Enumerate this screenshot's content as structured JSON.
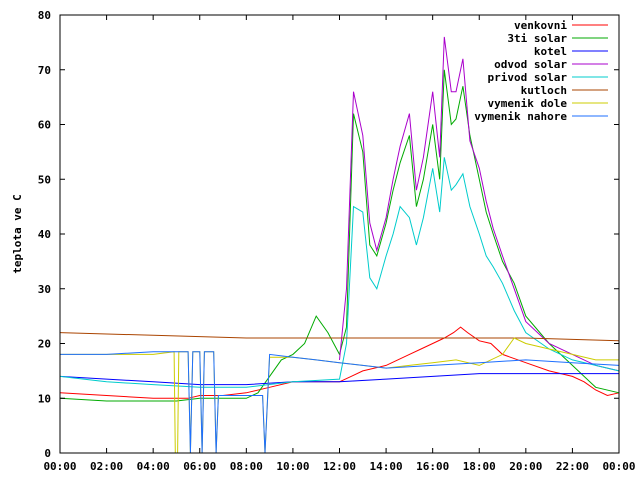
{
  "chart_data": {
    "type": "line",
    "title": "",
    "xlabel": "",
    "ylabel": "teplota ve C",
    "ylim": [
      0,
      80
    ],
    "xlim": [
      "00:00",
      "24:00"
    ],
    "grid": false,
    "legend_position": "top-right",
    "x_tick_labels": [
      "00:00",
      "02:00",
      "04:00",
      "06:00",
      "08:00",
      "10:00",
      "12:00",
      "14:00",
      "16:00",
      "18:00",
      "20:00",
      "22:00",
      "00:00"
    ],
    "y_tick_labels": [
      "0",
      "10",
      "20",
      "30",
      "40",
      "50",
      "60",
      "70",
      "80"
    ],
    "x_unit": "hours",
    "series": [
      {
        "name": "venkovni",
        "color": "#ff0000",
        "x": [
          0,
          2,
          4,
          5.5,
          6,
          7,
          8,
          9,
          10,
          11,
          12,
          12.5,
          13,
          14,
          15,
          15.5,
          16,
          16.5,
          16.9,
          17.2,
          17.5,
          18,
          18.5,
          19,
          20,
          21,
          22,
          22.5,
          23,
          23.5,
          24
        ],
        "y": [
          11,
          10.5,
          10,
          10,
          10.5,
          10.5,
          11,
          12,
          13,
          13,
          13,
          14,
          15,
          16,
          18,
          19,
          20,
          21,
          22,
          23,
          22,
          20.5,
          20,
          18,
          16.5,
          15,
          14,
          13,
          11.5,
          10.5,
          11
        ]
      },
      {
        "name": "3ti solar",
        "color": "#00aa00",
        "x": [
          0,
          2,
          4,
          5,
          6,
          7,
          8,
          8.5,
          9,
          9.5,
          10,
          10.5,
          11,
          11.5,
          12,
          12.3,
          12.6,
          13,
          13.3,
          13.6,
          14,
          14.3,
          14.6,
          15,
          15.3,
          15.6,
          16,
          16.3,
          16.5,
          16.8,
          17,
          17.3,
          17.6,
          18,
          18.3,
          18.6,
          19,
          19.5,
          20,
          21,
          22,
          23,
          24
        ],
        "y": [
          10,
          9.5,
          9.5,
          9.5,
          10,
          10,
          10,
          11,
          14,
          17,
          18,
          20,
          25,
          22,
          18,
          23,
          62,
          55,
          38,
          36,
          42,
          48,
          53,
          58,
          45,
          50,
          60,
          50,
          70,
          60,
          61,
          67,
          58,
          50,
          44,
          40,
          35,
          31,
          25,
          20,
          16,
          12,
          11
        ]
      },
      {
        "name": "kotel",
        "color": "#0000ff",
        "x": [
          0,
          2,
          4,
          6,
          8,
          10,
          12,
          14,
          16,
          18,
          20,
          22,
          24
        ],
        "y": [
          14,
          13.5,
          13,
          12.5,
          12.5,
          13,
          13,
          13.5,
          14,
          14.5,
          14.5,
          14.5,
          14.5
        ]
      },
      {
        "name": "odvod solar",
        "color": "#aa00cc",
        "x": [
          12,
          12.3,
          12.6,
          13,
          13.3,
          13.6,
          14,
          14.3,
          14.6,
          15,
          15.3,
          15.6,
          16,
          16.3,
          16.5,
          16.8,
          17,
          17.3,
          17.6,
          18,
          18.3,
          18.6,
          19,
          19.5,
          20,
          21,
          22,
          23,
          24
        ],
        "y": [
          17,
          30,
          66,
          58,
          42,
          37,
          43,
          50,
          56,
          62,
          48,
          54,
          66,
          54,
          76,
          66,
          66,
          72,
          57,
          52,
          46,
          41,
          36,
          30,
          24,
          20,
          18,
          16,
          15
        ]
      },
      {
        "name": "privod solar",
        "color": "#00cccc",
        "x": [
          0,
          2,
          4,
          6,
          8,
          10,
          12,
          12.3,
          12.6,
          13,
          13.3,
          13.6,
          14,
          14.3,
          14.6,
          15,
          15.3,
          15.6,
          16,
          16.3,
          16.5,
          16.8,
          17,
          17.3,
          17.6,
          18,
          18.3,
          18.6,
          19,
          19.5,
          20,
          21,
          22,
          23,
          24
        ],
        "y": [
          14,
          13,
          12.5,
          12,
          12,
          13,
          13.5,
          20,
          45,
          44,
          32,
          30,
          36,
          40,
          45,
          43,
          38,
          43,
          52,
          44,
          54,
          48,
          49,
          51,
          45,
          40,
          36,
          34,
          31,
          26,
          22,
          19,
          17,
          16,
          15
        ]
      },
      {
        "name": "kutloch",
        "color": "#aa4400",
        "x": [
          0,
          4,
          8,
          12,
          16,
          20,
          24
        ],
        "y": [
          22,
          21.5,
          21,
          21,
          21,
          21,
          20.5
        ]
      },
      {
        "name": "vymenik dole",
        "color": "#cccc00",
        "x": [
          0,
          2,
          4,
          4.9,
          4.95,
          5.05,
          5.1,
          5.5,
          5.6,
          5.7,
          5.8,
          6,
          6.1,
          6.2,
          6.3,
          6.6,
          6.7,
          6.8,
          8.7,
          8.8,
          9,
          10,
          11,
          12,
          13,
          14,
          15,
          16,
          17,
          18,
          19,
          19.5,
          20,
          21,
          22,
          23,
          24
        ],
        "y": [
          18,
          18,
          18,
          18.5,
          0,
          0,
          18.5,
          18.5,
          0,
          18.5,
          18.5,
          18.5,
          0,
          18.5,
          18.5,
          18.5,
          0,
          10.5,
          10.5,
          0,
          17.5,
          17.5,
          17,
          16.5,
          16,
          15.5,
          16,
          16.5,
          17,
          16,
          18,
          21,
          20,
          19,
          18,
          17,
          17
        ]
      },
      {
        "name": "vymenik nahore",
        "color": "#1e6fff",
        "x": [
          0,
          2,
          4,
          5.5,
          5.6,
          5.7,
          5.8,
          6,
          6.1,
          6.2,
          6.3,
          6.6,
          6.7,
          6.8,
          8.7,
          8.8,
          9,
          10,
          11,
          12,
          13,
          14,
          16,
          18,
          20,
          22,
          24
        ],
        "y": [
          18,
          18,
          18.5,
          18.5,
          0,
          18.5,
          18.5,
          18.5,
          0,
          18.5,
          18.5,
          18.5,
          0,
          10.5,
          10.5,
          0,
          18,
          17.5,
          17,
          16.5,
          16,
          15.5,
          16,
          16.5,
          17,
          16.5,
          16
        ]
      }
    ]
  }
}
